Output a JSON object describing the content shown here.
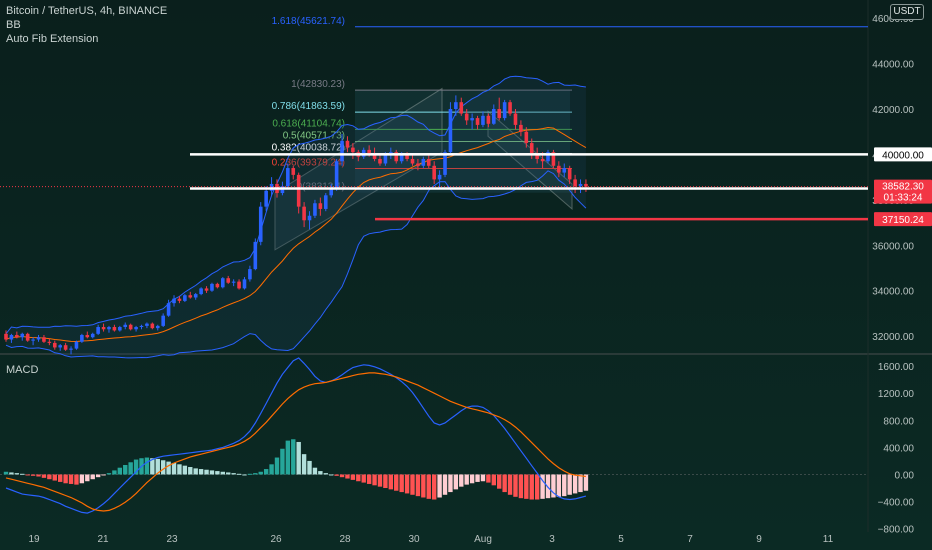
{
  "header": {
    "title": "Bitcoin / TetherUS, 4h, BINANCE",
    "bb_label": "BB",
    "fib_label": "Auto Fib Extension",
    "currency": "USDT"
  },
  "macd_label": "MACD",
  "colors": {
    "background": "#071614",
    "up": "#2962ff",
    "down": "#f23645",
    "bb": "#2962ff",
    "basis": "#ff6d00",
    "hist_up": "#26a69a",
    "hist_down": "#ff5252",
    "fib": [
      "#2962ff",
      "#787b86",
      "#80deea",
      "#4caf50",
      "#81c784",
      "#ffffff",
      "#f44336"
    ]
  },
  "chart_data": {
    "type": "candlestick",
    "title": "Bitcoin / TetherUS, 4h, BINANCE",
    "x_ticks": [
      "19",
      "21",
      "23",
      "26",
      "28",
      "30",
      "Aug",
      "3",
      "5",
      "7",
      "9",
      "11"
    ],
    "price_ticks": [
      "32000.00",
      "34000.00",
      "36000.00",
      "38000.00",
      "40000.00",
      "42000.00",
      "44000.00",
      "46000.00"
    ],
    "price_range": [
      31300,
      46800
    ],
    "fib_levels": [
      {
        "label": "1.618(45621.74)",
        "value": 45621.74
      },
      {
        "label": "1(42830.23)",
        "value": 42830.23
      },
      {
        "label": "0.786(41863.59)",
        "value": 41863.59
      },
      {
        "label": "0.618(41104.74)",
        "value": 41104.74
      },
      {
        "label": "0.5(40571.73)",
        "value": 40571.73
      },
      {
        "label": "0.382(40038.72)",
        "value": 40038.72
      },
      {
        "label": "0.236(39379.24)",
        "value": 39379.24
      }
    ],
    "fib_partial": "0(38313.1)",
    "price_lines": [
      {
        "label": "40000.00",
        "value": 40000,
        "style": "white"
      },
      {
        "label": "38500.00",
        "value": 38500,
        "style": "white"
      },
      {
        "label": "37150.24",
        "value": 37150.24,
        "style": "red"
      }
    ],
    "last_price": "38582.30",
    "countdown": "01:33:24",
    "candles": [
      [
        32100,
        32250,
        31750,
        31850
      ],
      [
        31850,
        32100,
        31700,
        32050
      ],
      [
        32050,
        32200,
        31900,
        31950
      ],
      [
        31950,
        32150,
        31800,
        32100
      ],
      [
        32100,
        32150,
        31750,
        31800
      ],
      [
        31800,
        31950,
        31600,
        31850
      ],
      [
        31850,
        32050,
        31750,
        31950
      ],
      [
        31950,
        32050,
        31700,
        31750
      ],
      [
        31750,
        31900,
        31600,
        31700
      ],
      [
        31700,
        31800,
        31400,
        31500
      ],
      [
        31500,
        31650,
        31350,
        31600
      ],
      [
        31600,
        31700,
        31350,
        31400
      ],
      [
        31400,
        31550,
        31200,
        31450
      ],
      [
        31450,
        31800,
        31400,
        31750
      ],
      [
        31750,
        32100,
        31700,
        32050
      ],
      [
        32050,
        32200,
        31900,
        31950
      ],
      [
        31950,
        32150,
        31900,
        32100
      ],
      [
        32100,
        32500,
        32050,
        32400
      ],
      [
        32400,
        32550,
        32200,
        32300
      ],
      [
        32300,
        32450,
        32150,
        32400
      ],
      [
        32400,
        32500,
        32200,
        32250
      ],
      [
        32250,
        32450,
        32200,
        32400
      ],
      [
        32400,
        32600,
        32300,
        32500
      ],
      [
        32500,
        32550,
        32250,
        32300
      ],
      [
        32300,
        32450,
        32200,
        32400
      ],
      [
        32400,
        32500,
        32300,
        32450
      ],
      [
        32450,
        32600,
        32350,
        32550
      ],
      [
        32550,
        32600,
        32300,
        32350
      ],
      [
        32350,
        32500,
        32250,
        32450
      ],
      [
        32450,
        33000,
        32400,
        32900
      ],
      [
        32900,
        33600,
        32850,
        33450
      ],
      [
        33450,
        33800,
        33300,
        33650
      ],
      [
        33650,
        33750,
        33450,
        33550
      ],
      [
        33550,
        33850,
        33500,
        33800
      ],
      [
        33800,
        33950,
        33650,
        33700
      ],
      [
        33700,
        33900,
        33600,
        33850
      ],
      [
        33850,
        34150,
        33800,
        34100
      ],
      [
        34100,
        34200,
        33900,
        34000
      ],
      [
        34000,
        34350,
        33950,
        34300
      ],
      [
        34300,
        34350,
        34100,
        34150
      ],
      [
        34150,
        34600,
        34100,
        34550
      ],
      [
        34550,
        34650,
        34300,
        34350
      ],
      [
        34350,
        34500,
        34200,
        34400
      ],
      [
        34400,
        34500,
        34050,
        34100
      ],
      [
        34100,
        34600,
        34050,
        34500
      ],
      [
        34500,
        35100,
        34400,
        34950
      ],
      [
        34950,
        36300,
        34900,
        36150
      ],
      [
        36150,
        37900,
        36000,
        37700
      ],
      [
        37700,
        38600,
        37500,
        38400
      ],
      [
        38400,
        39000,
        38200,
        38700
      ],
      [
        38700,
        38900,
        38100,
        38300
      ],
      [
        38300,
        38800,
        38200,
        38600
      ],
      [
        38600,
        39600,
        38500,
        39400
      ],
      [
        39400,
        39500,
        38900,
        39100
      ],
      [
        39100,
        39200,
        37400,
        37700
      ],
      [
        37700,
        37900,
        36800,
        37100
      ],
      [
        37100,
        37500,
        36700,
        37300
      ],
      [
        37300,
        38000,
        37200,
        37850
      ],
      [
        37850,
        38100,
        37300,
        37600
      ],
      [
        37600,
        38300,
        37500,
        38200
      ],
      [
        38200,
        38700,
        38100,
        38500
      ],
      [
        38500,
        39800,
        38400,
        39700
      ],
      [
        39700,
        40900,
        39500,
        40600
      ],
      [
        40600,
        40800,
        40100,
        40300
      ],
      [
        40300,
        40500,
        39800,
        40100
      ],
      [
        40100,
        40200,
        39700,
        39900
      ],
      [
        39900,
        40300,
        39800,
        40200
      ],
      [
        40200,
        40400,
        39900,
        40000
      ],
      [
        40000,
        40300,
        39700,
        39800
      ],
      [
        39800,
        40000,
        39500,
        39600
      ],
      [
        39600,
        40100,
        39500,
        40000
      ],
      [
        40000,
        40300,
        39800,
        40100
      ],
      [
        40100,
        40200,
        39600,
        39700
      ],
      [
        39700,
        40100,
        39600,
        40000
      ],
      [
        40000,
        40100,
        39700,
        39800
      ],
      [
        39800,
        40000,
        39500,
        39600
      ],
      [
        39600,
        39800,
        39300,
        39500
      ],
      [
        39500,
        39900,
        39400,
        39800
      ],
      [
        39800,
        40000,
        39400,
        39500
      ],
      [
        39500,
        39700,
        38700,
        38900
      ],
      [
        38900,
        39300,
        38500,
        39100
      ],
      [
        39100,
        40200,
        39000,
        40100
      ],
      [
        40100,
        42300,
        40000,
        42000
      ],
      [
        42000,
        42600,
        41700,
        42300
      ],
      [
        42300,
        42500,
        41700,
        41800
      ],
      [
        41800,
        42000,
        41300,
        41500
      ],
      [
        41500,
        41800,
        41100,
        41600
      ],
      [
        41600,
        41700,
        41100,
        41300
      ],
      [
        41300,
        41900,
        41200,
        41700
      ],
      [
        41700,
        41800,
        41200,
        41350
      ],
      [
        41350,
        42200,
        41300,
        42000
      ],
      [
        42000,
        42500,
        41500,
        41600
      ],
      [
        41600,
        42400,
        41500,
        42300
      ],
      [
        42300,
        42400,
        41700,
        41800
      ],
      [
        41800,
        42000,
        41100,
        41300
      ],
      [
        41300,
        41500,
        40800,
        41000
      ],
      [
        41000,
        41200,
        40300,
        40500
      ],
      [
        40500,
        40700,
        39800,
        40000
      ],
      [
        40000,
        40300,
        39600,
        39800
      ],
      [
        39800,
        40100,
        39400,
        39700
      ],
      [
        39700,
        40200,
        39600,
        40100
      ],
      [
        40100,
        40200,
        39400,
        39500
      ],
      [
        39500,
        39700,
        39000,
        39200
      ],
      [
        39200,
        39600,
        39000,
        39400
      ],
      [
        39400,
        39500,
        38700,
        38900
      ],
      [
        38900,
        39100,
        38300,
        38600
      ],
      [
        38600,
        38900,
        38300,
        38700
      ],
      [
        38700,
        38900,
        38350,
        38582.3
      ]
    ],
    "macd": {
      "ticks": [
        "1600.00",
        "1200.00",
        "800.00",
        "400.00",
        "0.00",
        "−400.00",
        "−800.00"
      ],
      "range": [
        -820,
        1720
      ],
      "histogram": [
        40,
        30,
        20,
        10,
        -10,
        -20,
        -30,
        -50,
        -70,
        -90,
        -110,
        -130,
        -140,
        -150,
        -130,
        -100,
        -70,
        -40,
        -10,
        20,
        60,
        100,
        140,
        180,
        220,
        240,
        250,
        240,
        230,
        210,
        190,
        170,
        150,
        130,
        110,
        90,
        80,
        70,
        60,
        50,
        40,
        30,
        20,
        10,
        0,
        10,
        20,
        40,
        80,
        150,
        250,
        380,
        500,
        520,
        480,
        300,
        200,
        100,
        50,
        20,
        0,
        -20,
        -40,
        -60,
        -80,
        -100,
        -120,
        -140,
        -160,
        -180,
        -200,
        -220,
        -240,
        -260,
        -280,
        -300,
        -320,
        -340,
        -360,
        -370,
        -340,
        -300,
        -260,
        -220,
        -180,
        -150,
        -130,
        -110,
        -100,
        -120,
        -160,
        -210,
        -260,
        -300,
        -330,
        -350,
        -360,
        -370,
        -370,
        -360,
        -350,
        -340,
        -330,
        -320,
        -300,
        -280,
        -260,
        -240
      ],
      "macd_line": [
        -200,
        -230,
        -260,
        -290,
        -300,
        -310,
        -320,
        -340,
        -370,
        -400,
        -430,
        -470,
        -500,
        -530,
        -560,
        -570,
        -540,
        -490,
        -430,
        -360,
        -280,
        -200,
        -120,
        -40,
        40,
        120,
        180,
        220,
        250,
        270,
        280,
        290,
        300,
        310,
        320,
        330,
        340,
        350,
        360,
        380,
        400,
        430,
        460,
        500,
        560,
        640,
        760,
        900,
        1050,
        1200,
        1350,
        1480,
        1580,
        1680,
        1720,
        1640,
        1550,
        1450,
        1380,
        1360,
        1380,
        1420,
        1470,
        1530,
        1580,
        1600,
        1620,
        1610,
        1590,
        1560,
        1520,
        1480,
        1430,
        1370,
        1300,
        1210,
        1100,
        980,
        860,
        760,
        730,
        760,
        820,
        880,
        940,
        990,
        1010,
        1010,
        990,
        940,
        870,
        780,
        680,
        570,
        460,
        350,
        240,
        130,
        20,
        -90,
        -190,
        -270,
        -330,
        -360,
        -370,
        -360,
        -340,
        -320
      ],
      "signal_line": [
        -50,
        -70,
        -90,
        -110,
        -130,
        -150,
        -170,
        -190,
        -220,
        -250,
        -280,
        -310,
        -340,
        -380,
        -420,
        -470,
        -510,
        -530,
        -540,
        -530,
        -500,
        -460,
        -410,
        -350,
        -280,
        -200,
        -120,
        -50,
        20,
        80,
        130,
        170,
        200,
        230,
        260,
        280,
        300,
        320,
        340,
        360,
        380,
        400,
        420,
        450,
        490,
        540,
        610,
        690,
        770,
        860,
        950,
        1040,
        1120,
        1190,
        1250,
        1290,
        1320,
        1340,
        1350,
        1360,
        1380,
        1400,
        1420,
        1440,
        1460,
        1480,
        1490,
        1500,
        1500,
        1490,
        1480,
        1460,
        1440,
        1410,
        1380,
        1350,
        1320,
        1280,
        1240,
        1200,
        1160,
        1120,
        1080,
        1050,
        1020,
        990,
        970,
        950,
        930,
        910,
        880,
        850,
        810,
        760,
        700,
        630,
        550,
        470,
        390,
        310,
        230,
        160,
        100,
        50,
        10,
        -10,
        -20,
        -30
      ]
    }
  }
}
